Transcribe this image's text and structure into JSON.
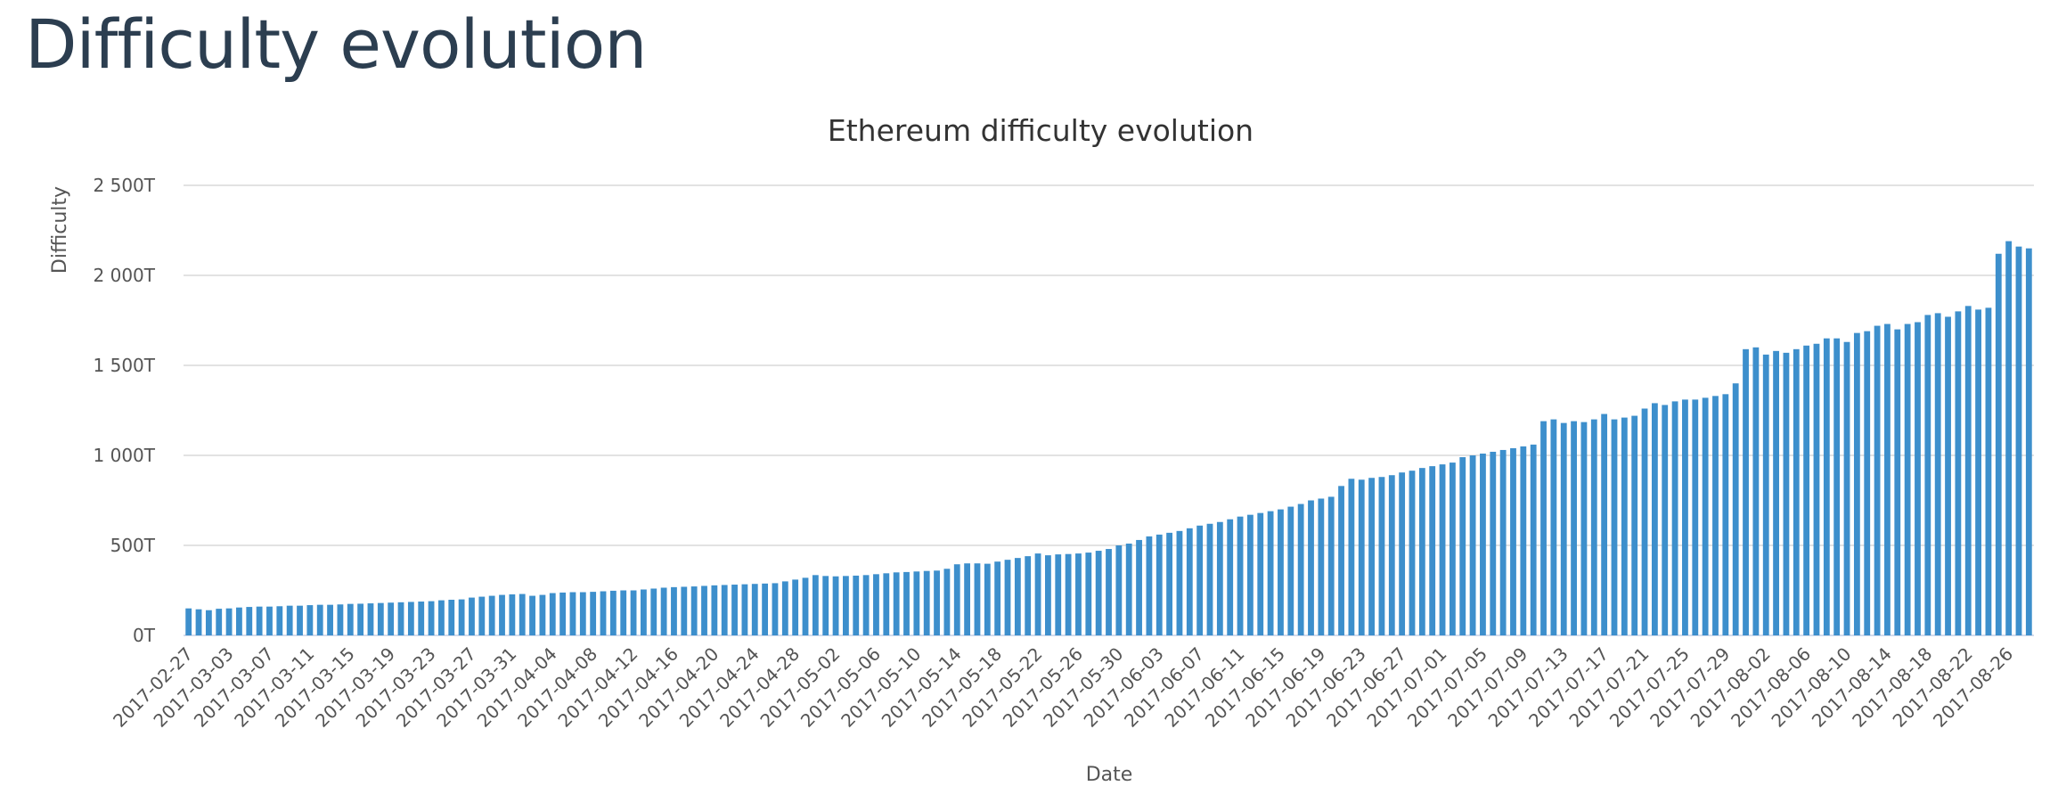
{
  "page": {
    "title": "Difficulty evolution"
  },
  "chart_data": {
    "type": "bar",
    "title": "Ethereum difficulty evolution",
    "x_label": "Date",
    "y_label": "Difficulty",
    "color": "#3d8fcc",
    "grid": true,
    "ylim": [
      0,
      2500
    ],
    "yticks": [
      {
        "value": 0,
        "label": "0T"
      },
      {
        "value": 500,
        "label": "500T"
      },
      {
        "value": 1000,
        "label": "1 000T"
      },
      {
        "value": 1500,
        "label": "1 500T"
      },
      {
        "value": 2000,
        "label": "2 000T"
      },
      {
        "value": 2500,
        "label": "2 500T"
      }
    ],
    "categories": [
      "2017-02-27",
      null,
      null,
      null,
      "2017-03-03",
      null,
      null,
      null,
      "2017-03-07",
      null,
      null,
      null,
      "2017-03-11",
      null,
      null,
      null,
      "2017-03-15",
      null,
      null,
      null,
      "2017-03-19",
      null,
      null,
      null,
      "2017-03-23",
      null,
      null,
      null,
      "2017-03-27",
      null,
      null,
      null,
      "2017-03-31",
      null,
      null,
      null,
      "2017-04-04",
      null,
      null,
      null,
      "2017-04-08",
      null,
      null,
      null,
      "2017-04-12",
      null,
      null,
      null,
      "2017-04-16",
      null,
      null,
      null,
      "2017-04-20",
      null,
      null,
      null,
      "2017-04-24",
      null,
      null,
      null,
      "2017-04-28",
      null,
      null,
      null,
      "2017-05-02",
      null,
      null,
      null,
      "2017-05-06",
      null,
      null,
      null,
      "2017-05-10",
      null,
      null,
      null,
      "2017-05-14",
      null,
      null,
      null,
      "2017-05-18",
      null,
      null,
      null,
      "2017-05-22",
      null,
      null,
      null,
      "2017-05-26",
      null,
      null,
      null,
      "2017-05-30",
      null,
      null,
      null,
      "2017-06-03",
      null,
      null,
      null,
      "2017-06-07",
      null,
      null,
      null,
      "2017-06-11",
      null,
      null,
      null,
      "2017-06-15",
      null,
      null,
      null,
      "2017-06-19",
      null,
      null,
      null,
      "2017-06-23",
      null,
      null,
      null,
      "2017-06-27",
      null,
      null,
      null,
      "2017-07-01",
      null,
      null,
      null,
      "2017-07-05",
      null,
      null,
      null,
      "2017-07-09",
      null,
      null,
      null,
      "2017-07-13",
      null,
      null,
      null,
      "2017-07-17",
      null,
      null,
      null,
      "2017-07-21",
      null,
      null,
      null,
      "2017-07-25",
      null,
      null,
      null,
      "2017-07-29",
      null,
      null,
      null,
      "2017-08-02",
      null,
      null,
      null,
      "2017-08-06",
      null,
      null,
      null,
      "2017-08-10",
      null,
      null,
      null,
      "2017-08-14",
      null,
      null,
      null,
      "2017-08-18",
      null,
      null,
      null,
      "2017-08-22",
      null,
      null,
      null,
      "2017-08-26",
      null,
      null
    ],
    "values": [
      150,
      145,
      140,
      148,
      150,
      155,
      158,
      160,
      160,
      162,
      165,
      165,
      168,
      170,
      170,
      172,
      175,
      176,
      178,
      180,
      182,
      184,
      186,
      188,
      190,
      195,
      198,
      200,
      210,
      215,
      220,
      225,
      228,
      230,
      220,
      225,
      235,
      238,
      240,
      240,
      242,
      245,
      248,
      250,
      250,
      255,
      260,
      265,
      268,
      270,
      272,
      275,
      278,
      280,
      282,
      284,
      286,
      288,
      290,
      300,
      310,
      320,
      335,
      330,
      328,
      330,
      332,
      335,
      340,
      345,
      350,
      352,
      355,
      358,
      360,
      370,
      395,
      400,
      400,
      398,
      410,
      420,
      430,
      440,
      455,
      445,
      450,
      452,
      455,
      460,
      470,
      480,
      500,
      510,
      530,
      550,
      560,
      570,
      580,
      595,
      610,
      620,
      630,
      645,
      660,
      670,
      680,
      690,
      700,
      715,
      730,
      750,
      760,
      770,
      830,
      870,
      865,
      875,
      880,
      890,
      905,
      915,
      930,
      940,
      950,
      960,
      990,
      1000,
      1010,
      1020,
      1030,
      1040,
      1050,
      1060,
      1190,
      1200,
      1180,
      1190,
      1185,
      1200,
      1230,
      1200,
      1210,
      1220,
      1260,
      1290,
      1280,
      1300,
      1310,
      1310,
      1320,
      1330,
      1340,
      1400,
      1590,
      1600,
      1560,
      1580,
      1570,
      1590,
      1610,
      1620,
      1650,
      1650,
      1630,
      1680,
      1690,
      1720,
      1730,
      1700,
      1730,
      1740,
      1780,
      1790,
      1770,
      1800,
      1830,
      1810,
      1820,
      2120,
      2190,
      2160,
      2150
    ]
  }
}
